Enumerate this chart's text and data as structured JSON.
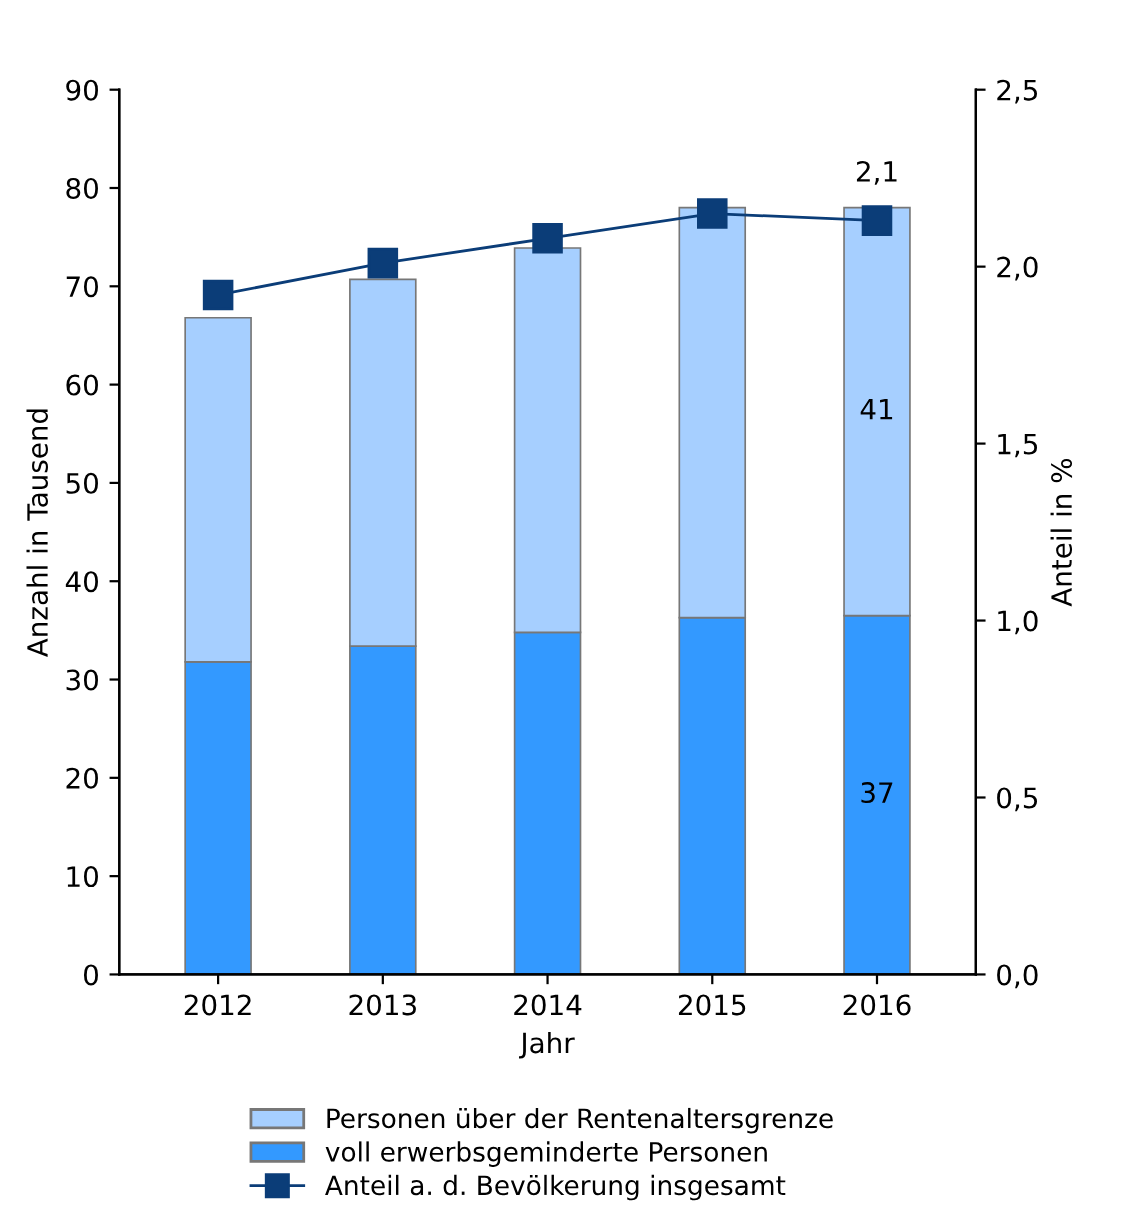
{
  "chart_data": {
    "type": "bar",
    "stacked": true,
    "categories": [
      "2012",
      "2013",
      "2014",
      "2015",
      "2016"
    ],
    "xlabel": "Jahr",
    "ylabel": "Anzahl in Tausend",
    "y2label": "Anteil in %",
    "ylim": [
      0,
      90
    ],
    "yticks": [
      0,
      10,
      20,
      30,
      40,
      50,
      60,
      70,
      80,
      90
    ],
    "y2lim": [
      0,
      2.5
    ],
    "y2ticks": [
      {
        "value": 0,
        "label": "0,0"
      },
      {
        "value": 0.5,
        "label": "0,5"
      },
      {
        "value": 1,
        "label": "1,0"
      },
      {
        "value": 1.5,
        "label": "1,5"
      },
      {
        "value": 2,
        "label": "2,0"
      },
      {
        "value": 2.5,
        "label": "2,5"
      }
    ],
    "series": [
      {
        "name": "voll erwerbsgeminderte Personen",
        "color": "#3399ff",
        "values": [
          31.8,
          33.4,
          34.8,
          36.3,
          36.5
        ],
        "value_labels": [
          null,
          null,
          null,
          null,
          "37"
        ]
      },
      {
        "name": "Personen über der Rentenaltersgrenze",
        "color": "#a6cfff",
        "values": [
          35.0,
          37.3,
          39.1,
          41.7,
          41.5
        ],
        "value_labels": [
          null,
          null,
          null,
          null,
          "41"
        ]
      },
      {
        "name": "Anteil a. d. Bevölkerung insgesamt",
        "type": "line",
        "axis": "y2",
        "color": "#0b3d78",
        "marker": "square",
        "values": [
          1.92,
          2.01,
          2.08,
          2.15,
          2.13
        ],
        "value_labels": [
          null,
          null,
          null,
          null,
          "2,1"
        ]
      }
    ],
    "legend": "bottom",
    "grid": false
  }
}
